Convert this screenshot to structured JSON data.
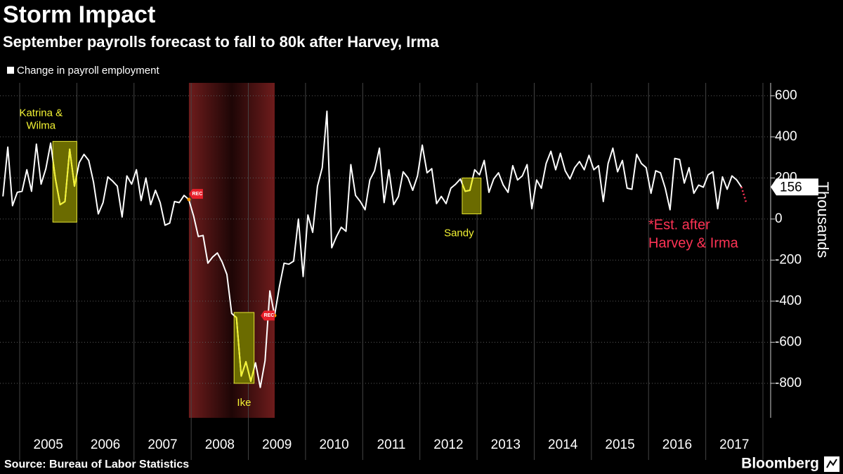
{
  "chart_data": {
    "type": "line",
    "title": "Storm Impact",
    "subtitle": "September payrolls forecast to fall to 80k after Harvey, Irma",
    "y_label": "Thousands",
    "source": "Source: Bureau of Labor Statistics",
    "brand": "Bloomberg",
    "xlim": [
      2004.656,
      2018.135
    ],
    "xticks": [
      2005,
      2006,
      2007,
      2008,
      2009,
      2010,
      2011,
      2012,
      2013,
      2014,
      2015,
      2016,
      2017
    ],
    "ylim": [
      -968,
      663
    ],
    "yticks": [
      600,
      400,
      200,
      0,
      -200,
      -400,
      -600,
      -800
    ],
    "grid": true,
    "series": [
      {
        "name": "Change in payroll employment",
        "color": "#ffffff",
        "x": [
          2004.708,
          2004.792,
          2004.875,
          2004.958,
          2005.042,
          2005.125,
          2005.208,
          2005.292,
          2005.375,
          2005.458,
          2005.542,
          2005.625,
          2005.708,
          2005.792,
          2005.875,
          2005.958,
          2006.042,
          2006.125,
          2006.208,
          2006.292,
          2006.375,
          2006.458,
          2006.542,
          2006.625,
          2006.708,
          2006.792,
          2006.875,
          2006.958,
          2007.042,
          2007.125,
          2007.208,
          2007.292,
          2007.375,
          2007.458,
          2007.542,
          2007.625,
          2007.708,
          2007.792,
          2007.875,
          2007.958,
          2008.042,
          2008.125,
          2008.208,
          2008.292,
          2008.375,
          2008.458,
          2008.542,
          2008.625,
          2008.708,
          2008.792,
          2008.875,
          2008.958,
          2009.042,
          2009.125,
          2009.208,
          2009.292,
          2009.375,
          2009.458,
          2009.542,
          2009.625,
          2009.708,
          2009.792,
          2009.875,
          2009.958,
          2010.042,
          2010.125,
          2010.208,
          2010.292,
          2010.375,
          2010.458,
          2010.542,
          2010.625,
          2010.708,
          2010.792,
          2010.875,
          2010.958,
          2011.042,
          2011.125,
          2011.208,
          2011.292,
          2011.375,
          2011.458,
          2011.542,
          2011.625,
          2011.708,
          2011.792,
          2011.875,
          2011.958,
          2012.042,
          2012.125,
          2012.208,
          2012.292,
          2012.375,
          2012.458,
          2012.542,
          2012.625,
          2012.708,
          2012.792,
          2012.875,
          2012.958,
          2013.042,
          2013.125,
          2013.208,
          2013.292,
          2013.375,
          2013.458,
          2013.542,
          2013.625,
          2013.708,
          2013.792,
          2013.875,
          2013.958,
          2014.042,
          2014.125,
          2014.208,
          2014.292,
          2014.375,
          2014.458,
          2014.542,
          2014.625,
          2014.708,
          2014.792,
          2014.875,
          2014.958,
          2015.042,
          2015.125,
          2015.208,
          2015.292,
          2015.375,
          2015.458,
          2015.542,
          2015.625,
          2015.708,
          2015.792,
          2015.875,
          2015.958,
          2016.042,
          2016.125,
          2016.208,
          2016.292,
          2016.375,
          2016.458,
          2016.542,
          2016.625,
          2016.708,
          2016.792,
          2016.875,
          2016.958,
          2017.042,
          2017.125,
          2017.208,
          2017.292,
          2017.375,
          2017.458,
          2017.542,
          2017.625
        ],
        "values": [
          110,
          350,
          65,
          130,
          135,
          240,
          135,
          365,
          170,
          245,
          370,
          195,
          70,
          85,
          340,
          160,
          275,
          315,
          285,
          180,
          25,
          80,
          205,
          185,
          160,
          10,
          210,
          170,
          240,
          90,
          200,
          70,
          140,
          80,
          -30,
          -20,
          85,
          80,
          115,
          95,
          15,
          -85,
          -80,
          -215,
          -185,
          -165,
          -210,
          -270,
          -460,
          -480,
          -765,
          -695,
          -790,
          -700,
          -820,
          -690,
          -350,
          -470,
          -330,
          -215,
          -220,
          -205,
          0,
          -280,
          20,
          -65,
          160,
          250,
          525,
          -140,
          -85,
          -40,
          -60,
          265,
          115,
          85,
          45,
          190,
          235,
          345,
          80,
          240,
          70,
          110,
          230,
          200,
          140,
          210,
          360,
          225,
          245,
          75,
          110,
          75,
          150,
          170,
          195,
          135,
          140,
          240,
          215,
          285,
          130,
          195,
          225,
          165,
          130,
          260,
          190,
          210,
          265,
          50,
          190,
          150,
          270,
          330,
          240,
          320,
          235,
          195,
          250,
          280,
          240,
          310,
          240,
          260,
          85,
          270,
          345,
          230,
          285,
          150,
          145,
          315,
          270,
          250,
          125,
          235,
          225,
          150,
          45,
          295,
          290,
          175,
          250,
          125,
          165,
          155,
          215,
          230,
          50,
          205,
          145,
          210,
          190,
          156
        ]
      },
      {
        "color": "#ff3355",
        "dashed": true,
        "x": [
          2017.625,
          2017.708
        ],
        "values": [
          156,
          80
        ]
      }
    ],
    "recession": {
      "label": "REC",
      "x": [
        2007.96,
        2009.46
      ]
    },
    "storm_boxes": [
      {
        "label": [
          "Katrina &",
          "Wilma"
        ],
        "x": [
          2005.58,
          2006.0
        ],
        "y": [
          -15,
          378
        ]
      },
      {
        "label": [
          "Ike"
        ],
        "x": [
          2008.75,
          2009.1
        ],
        "y": [
          -800,
          -455
        ]
      },
      {
        "label": [
          "Sandy"
        ],
        "x": [
          2012.74,
          2013.07
        ],
        "y": [
          25,
          200
        ]
      }
    ],
    "estimate_note": [
      "*Est. after",
      "Harvey & Irma"
    ]
  }
}
